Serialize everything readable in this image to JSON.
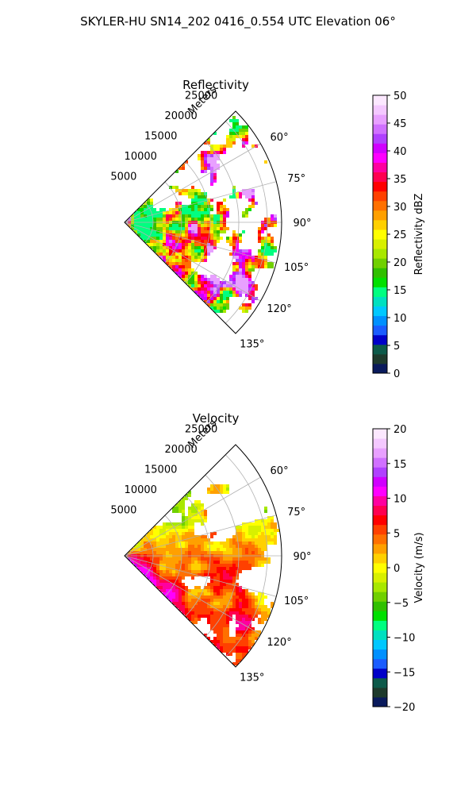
{
  "suptitle": "SKYLER-HU  SN14_202  0416_0.554 UTC Elevation 06°",
  "chart_data": [
    {
      "type": "heatmap",
      "projection": "polar-sector",
      "title": "Reflectivity",
      "range_label": "Meters",
      "range_ticks": [
        "5000",
        "10000",
        "15000",
        "20000",
        "25000"
      ],
      "range_values": [
        5000,
        10000,
        15000,
        20000,
        25000
      ],
      "range_max": 27500,
      "azimuth_ticks": [
        "60°",
        "75°",
        "90°",
        "105°",
        "120°",
        "135°"
      ],
      "azimuth_values": [
        60,
        75,
        90,
        105,
        120,
        135
      ],
      "sector": [
        45,
        135
      ],
      "grid": true,
      "colorbar": {
        "label": "Reflectivity dBZ",
        "min": 0,
        "max": 50,
        "ticks": [
          "0",
          "5",
          "10",
          "15",
          "20",
          "25",
          "30",
          "35",
          "40",
          "45",
          "50"
        ],
        "tick_values": [
          0,
          5,
          10,
          15,
          20,
          25,
          30,
          35,
          40,
          45,
          50
        ],
        "colors": [
          "#0a1a5c",
          "#1e3a2c",
          "#0d5a4a",
          "#0000c8",
          "#1a5cff",
          "#0090ff",
          "#00c8ff",
          "#00e0c0",
          "#00ff80",
          "#00e000",
          "#30c000",
          "#70d000",
          "#a8e800",
          "#d8f000",
          "#ffff00",
          "#ffd000",
          "#ffa000",
          "#ff7000",
          "#ff4000",
          "#ff0000",
          "#ff0050",
          "#ff00a0",
          "#ff00ff",
          "#d000ff",
          "#b040ff",
          "#d070ff",
          "#e8a0ff",
          "#f4c8ff",
          "#fce8ff"
        ]
      }
    },
    {
      "type": "heatmap",
      "projection": "polar-sector",
      "title": "Velocity",
      "range_label": "Meters",
      "range_ticks": [
        "5000",
        "10000",
        "15000",
        "20000",
        "25000"
      ],
      "range_values": [
        5000,
        10000,
        15000,
        20000,
        25000
      ],
      "range_max": 27500,
      "azimuth_ticks": [
        "60°",
        "75°",
        "90°",
        "105°",
        "120°",
        "135°"
      ],
      "azimuth_values": [
        60,
        75,
        90,
        105,
        120,
        135
      ],
      "sector": [
        45,
        135
      ],
      "grid": true,
      "colorbar": {
        "label": "Velocity (m/s)",
        "min": -20,
        "max": 20,
        "ticks": [
          "−20",
          "−15",
          "−10",
          "−5",
          "0",
          "5",
          "10",
          "15",
          "20"
        ],
        "tick_values": [
          -20,
          -15,
          -10,
          -5,
          0,
          5,
          10,
          15,
          20
        ],
        "colors": [
          "#0a1a5c",
          "#1e3a2c",
          "#0d5a4a",
          "#0000c8",
          "#1a5cff",
          "#0090ff",
          "#00c8ff",
          "#00e0c0",
          "#00ff80",
          "#00e000",
          "#30c000",
          "#70d000",
          "#a8e800",
          "#d8f000",
          "#ffff00",
          "#ffd000",
          "#ffa000",
          "#ff7000",
          "#ff4000",
          "#ff0000",
          "#ff0050",
          "#ff00a0",
          "#ff00ff",
          "#d000ff",
          "#b040ff",
          "#d070ff",
          "#e8a0ff",
          "#f4c8ff",
          "#fce8ff"
        ]
      }
    }
  ]
}
